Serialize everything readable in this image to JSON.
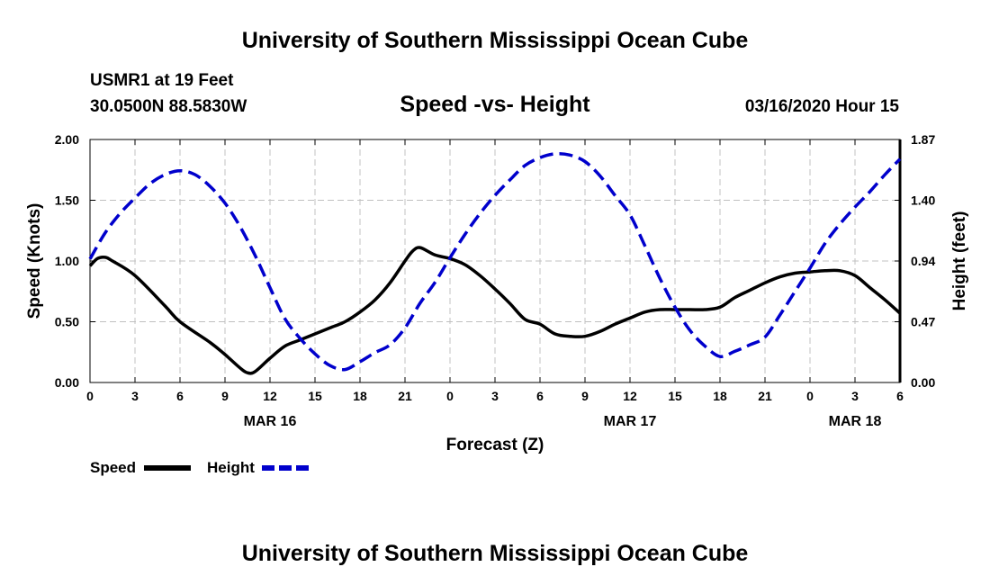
{
  "page": {
    "top_title": "University of Southern Mississippi Ocean Cube",
    "bottom_title": "University of Southern Mississippi Ocean Cube"
  },
  "chart_data": {
    "type": "line",
    "title": "Speed -vs- Height",
    "station": "USMR1 at 19 Feet",
    "location": "30.0500N 88.5830W",
    "issued": "03/16/2020 Hour 15",
    "xlabel": "Forecast (Z)",
    "ylabel_left": "Speed (Knots)",
    "ylabel_right": "Height (feet)",
    "x_range_hours": [
      0,
      54
    ],
    "x_ticks": [
      {
        "h": 0,
        "label": "0"
      },
      {
        "h": 3,
        "label": "3"
      },
      {
        "h": 6,
        "label": "6"
      },
      {
        "h": 9,
        "label": "9"
      },
      {
        "h": 12,
        "label": "12"
      },
      {
        "h": 15,
        "label": "15"
      },
      {
        "h": 18,
        "label": "18"
      },
      {
        "h": 21,
        "label": "21"
      },
      {
        "h": 24,
        "label": "0"
      },
      {
        "h": 27,
        "label": "3"
      },
      {
        "h": 30,
        "label": "6"
      },
      {
        "h": 33,
        "label": "9"
      },
      {
        "h": 36,
        "label": "12"
      },
      {
        "h": 39,
        "label": "15"
      },
      {
        "h": 42,
        "label": "18"
      },
      {
        "h": 45,
        "label": "21"
      },
      {
        "h": 48,
        "label": "0"
      },
      {
        "h": 51,
        "label": "3"
      },
      {
        "h": 54,
        "label": "6"
      }
    ],
    "date_labels": [
      {
        "h": 12,
        "label": "MAR 16"
      },
      {
        "h": 36,
        "label": "MAR 17"
      },
      {
        "h": 51,
        "label": "MAR 18"
      }
    ],
    "y_left_range": [
      0,
      2.0
    ],
    "y_left_ticks": [
      "0.00",
      "0.50",
      "1.00",
      "1.50",
      "2.00"
    ],
    "y_right_range": [
      0,
      1.87
    ],
    "y_right_ticks": [
      "0.00",
      "0.47",
      "0.94",
      "1.40",
      "1.87"
    ],
    "grid": true,
    "legend": {
      "position": "bottom-left",
      "entries": [
        {
          "label": "Speed",
          "color": "#000000",
          "dash": "solid"
        },
        {
          "label": "Height",
          "color": "#0000cc",
          "dash": "dashed"
        }
      ]
    },
    "series": [
      {
        "name": "Speed",
        "axis": "left",
        "units": "knots",
        "color": "#000000",
        "x": [
          0,
          0.5,
          1,
          1.5,
          3,
          5,
          6,
          8,
          9,
          10,
          10.5,
          11,
          12,
          13,
          14,
          15,
          16,
          17,
          18,
          19,
          20,
          21,
          21.5,
          22,
          23,
          24,
          25,
          26,
          27,
          28,
          29,
          30,
          31,
          32,
          33,
          34,
          35,
          36,
          37,
          38,
          39,
          40,
          41,
          42,
          43,
          44,
          45,
          46,
          47,
          48,
          49,
          50,
          51,
          52,
          53,
          54
        ],
        "values": [
          0.96,
          1.02,
          1.03,
          1.0,
          0.88,
          0.63,
          0.5,
          0.33,
          0.23,
          0.12,
          0.08,
          0.09,
          0.2,
          0.3,
          0.35,
          0.4,
          0.45,
          0.5,
          0.58,
          0.68,
          0.82,
          1.0,
          1.08,
          1.11,
          1.05,
          1.02,
          0.97,
          0.88,
          0.77,
          0.65,
          0.52,
          0.48,
          0.4,
          0.38,
          0.38,
          0.42,
          0.48,
          0.53,
          0.58,
          0.6,
          0.6,
          0.6,
          0.6,
          0.62,
          0.7,
          0.76,
          0.82,
          0.87,
          0.9,
          0.91,
          0.92,
          0.92,
          0.88,
          0.78,
          0.68,
          0.57
        ]
      },
      {
        "name": "Height",
        "axis": "right",
        "units": "feet",
        "color": "#0000cc",
        "x": [
          0,
          1,
          2,
          3,
          4,
          5,
          6,
          7,
          8,
          9,
          10,
          11,
          12,
          13,
          14,
          15,
          16,
          17,
          18,
          19,
          20,
          21,
          22,
          23,
          24,
          25,
          26,
          27,
          28,
          29,
          30,
          31,
          32,
          33,
          34,
          35,
          36,
          37,
          38,
          39,
          40,
          41,
          42,
          43,
          44,
          45,
          46,
          47,
          48,
          49,
          50,
          51,
          52,
          53,
          54
        ],
        "values": [
          0.95,
          1.15,
          1.3,
          1.42,
          1.53,
          1.6,
          1.63,
          1.6,
          1.51,
          1.38,
          1.2,
          0.98,
          0.73,
          0.49,
          0.34,
          0.22,
          0.13,
          0.1,
          0.16,
          0.23,
          0.29,
          0.42,
          0.61,
          0.77,
          0.96,
          1.14,
          1.3,
          1.44,
          1.56,
          1.67,
          1.73,
          1.76,
          1.75,
          1.7,
          1.59,
          1.44,
          1.29,
          1.05,
          0.8,
          0.58,
          0.4,
          0.28,
          0.2,
          0.24,
          0.29,
          0.35,
          0.52,
          0.7,
          0.88,
          1.07,
          1.22,
          1.35,
          1.47,
          1.6,
          1.72
        ]
      }
    ]
  }
}
